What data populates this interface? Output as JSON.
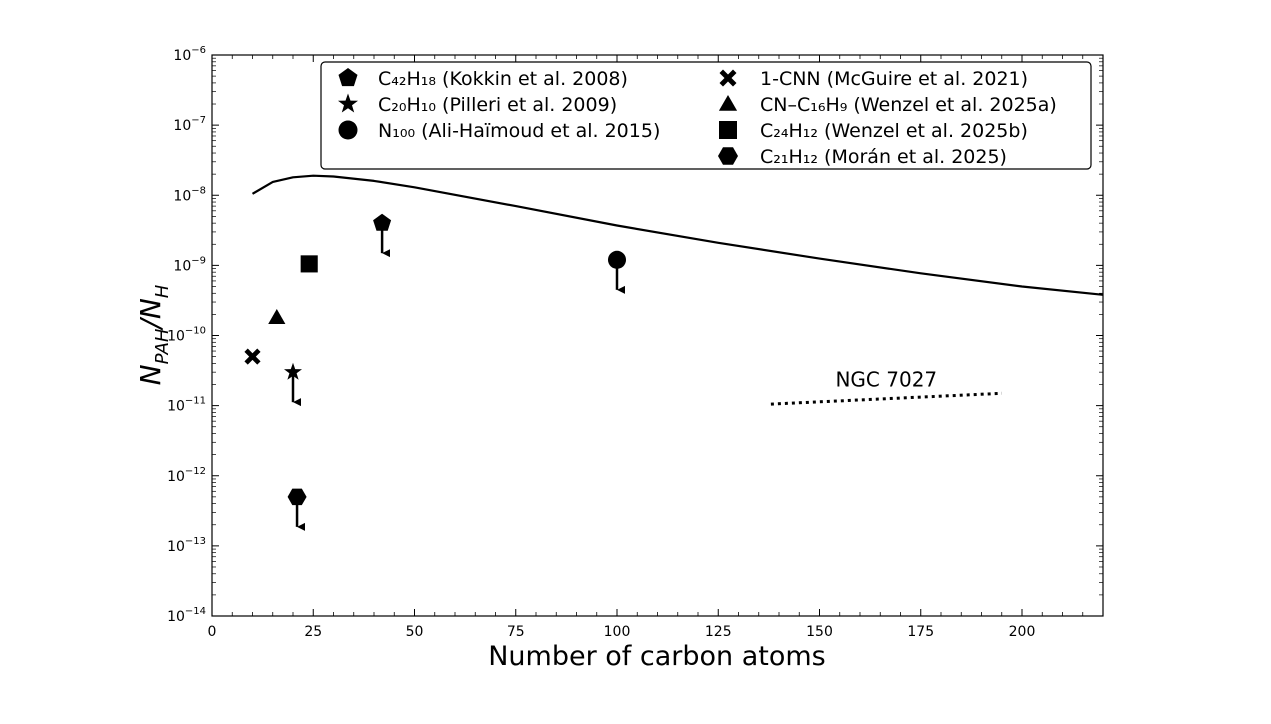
{
  "chart_data": {
    "type": "scatter",
    "xlabel": "Number of carbon atoms",
    "ylabel": "N_PAH/N_H",
    "xlim": [
      0,
      220
    ],
    "ylim": [
      1e-14,
      1e-06
    ],
    "yscale": "log",
    "xticks": [
      0,
      25,
      50,
      75,
      100,
      125,
      150,
      175,
      200
    ],
    "xtick_labels": [
      "0",
      "25",
      "50",
      "75",
      "100",
      "125",
      "150",
      "175",
      "200"
    ],
    "yticks": [
      -14,
      -13,
      -12,
      -11,
      -10,
      -9,
      -8,
      -7,
      -6
    ],
    "ytick_labels": [
      "10−14",
      "10−13",
      "10−12",
      "10−11",
      "10−10",
      "10−9",
      "10−8",
      "10−7",
      "10−6"
    ],
    "legend_position": "top-right",
    "legend": [
      {
        "label": "C₄₂H₁₈ (Kokkin et al. 2008)",
        "marker": "pentagon"
      },
      {
        "label": "C₂₀H₁₀ (Pilleri et al. 2009)",
        "marker": "star"
      },
      {
        "label": "N₁₀₀ (Ali-Haïmoud et al. 2015)",
        "marker": "circle"
      },
      {
        "label": "1-CNN (McGuire et al. 2021)",
        "marker": "x"
      },
      {
        "label": "CN–C₁₆H₉ (Wenzel et al. 2025a)",
        "marker": "triangle"
      },
      {
        "label": "C₂₄H₁₂ (Wenzel et al. 2025b)",
        "marker": "square"
      },
      {
        "label": "C₂₁H₁₂ (Morán et al. 2025)",
        "marker": "hexagon"
      }
    ],
    "points": [
      {
        "marker": "pentagon",
        "x": 42,
        "y": 4e-09,
        "upper_limit": true
      },
      {
        "marker": "star",
        "x": 20,
        "y": 3e-11,
        "upper_limit": true
      },
      {
        "marker": "circle",
        "x": 100,
        "y": 1.2e-09,
        "upper_limit": true
      },
      {
        "marker": "x",
        "x": 10,
        "y": 5e-11,
        "upper_limit": false
      },
      {
        "marker": "triangle",
        "x": 16,
        "y": 1.8e-10,
        "upper_limit": false
      },
      {
        "marker": "square",
        "x": 24,
        "y": 1.05e-09,
        "upper_limit": false
      },
      {
        "marker": "hexagon",
        "x": 21,
        "y": 5e-13,
        "upper_limit": true
      }
    ],
    "model_curve": {
      "style": "solid",
      "x": [
        10,
        15,
        20,
        25,
        30,
        40,
        50,
        75,
        100,
        125,
        150,
        175,
        200,
        220
      ],
      "y": [
        1.05e-08,
        1.55e-08,
        1.8e-08,
        1.9e-08,
        1.85e-08,
        1.6e-08,
        1.3e-08,
        7e-09,
        3.7e-09,
        2.1e-09,
        1.25e-09,
        7.7e-10,
        5e-10,
        3.8e-10
      ]
    },
    "ngc7027_curve": {
      "label": "NGC 7027",
      "style": "dotted",
      "x": [
        138,
        195
      ],
      "y": [
        1.05e-11,
        1.5e-11
      ]
    }
  }
}
